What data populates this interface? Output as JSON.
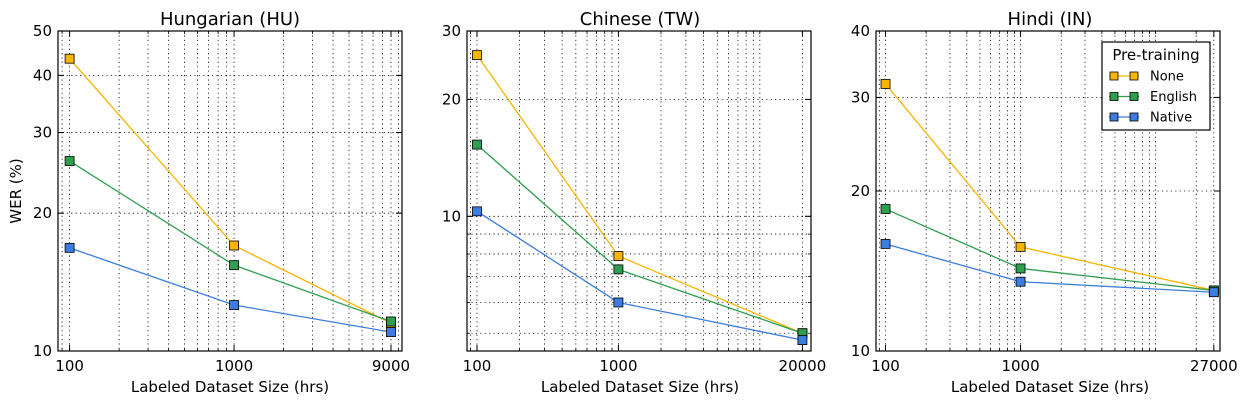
{
  "chart_data": [
    {
      "type": "line",
      "title": "Hungarian (HU)",
      "xlabel": "Labeled Dataset Size (hrs)",
      "ylabel": "WER (%)",
      "xscale": "log",
      "yscale": "log",
      "grid": true,
      "xlim": [
        85,
        10500
      ],
      "ylim": [
        10,
        50
      ],
      "xticks": [
        100,
        1000,
        9000
      ],
      "xtick_labels": [
        "100",
        "1000",
        "9000"
      ],
      "yticks": [
        10,
        20,
        30,
        40,
        50
      ],
      "ytick_labels": [
        "10",
        "20",
        "30",
        "40",
        "50"
      ],
      "x": [
        100,
        1000,
        9000
      ],
      "series": [
        {
          "name": "None",
          "color": "#f7b500",
          "values": [
            43.5,
            17.0,
            11.5
          ]
        },
        {
          "name": "English",
          "color": "#2e9e4f",
          "values": [
            26.0,
            15.4,
            11.6
          ]
        },
        {
          "name": "Native",
          "color": "#3b7de0",
          "values": [
            16.8,
            12.6,
            11.0
          ]
        }
      ]
    },
    {
      "type": "line",
      "title": "Chinese (TW)",
      "xlabel": "Labeled Dataset Size (hrs)",
      "ylabel": "",
      "xscale": "log",
      "yscale": "log",
      "grid": true,
      "xlim": [
        85,
        23000
      ],
      "ylim": [
        4.5,
        30
      ],
      "xticks": [
        100,
        1000,
        20000
      ],
      "xtick_labels": [
        "100",
        "1000",
        "20000"
      ],
      "yticks": [
        10,
        20,
        30
      ],
      "ytick_labels": [
        "10",
        "20",
        "30"
      ],
      "x": [
        100,
        1000,
        20000
      ],
      "series": [
        {
          "name": "None",
          "color": "#f7b500",
          "values": [
            26.0,
            7.9,
            5.0
          ]
        },
        {
          "name": "English",
          "color": "#2e9e4f",
          "values": [
            15.3,
            7.3,
            5.0
          ]
        },
        {
          "name": "Native",
          "color": "#3b7de0",
          "values": [
            10.3,
            6.0,
            4.8
          ]
        }
      ]
    },
    {
      "type": "line",
      "title": "Hindi (IN)",
      "xlabel": "Labeled Dataset Size (hrs)",
      "ylabel": "",
      "xscale": "log",
      "yscale": "log",
      "grid": true,
      "legend": {
        "title": "Pre-training",
        "location": "top-right"
      },
      "xlim": [
        85,
        30000
      ],
      "ylim": [
        10,
        40
      ],
      "xticks": [
        100,
        1000,
        27000
      ],
      "xtick_labels": [
        "100",
        "1000",
        "27000"
      ],
      "yticks": [
        10,
        20,
        30,
        40
      ],
      "ytick_labels": [
        "10",
        "20",
        "30",
        "40"
      ],
      "x": [
        100,
        1000,
        27000
      ],
      "series": [
        {
          "name": "None",
          "color": "#f7b500",
          "values": [
            31.8,
            15.7,
            13.0
          ]
        },
        {
          "name": "English",
          "color": "#2e9e4f",
          "values": [
            18.5,
            14.3,
            13.0
          ]
        },
        {
          "name": "Native",
          "color": "#3b7de0",
          "values": [
            15.9,
            13.5,
            12.9
          ]
        }
      ]
    }
  ]
}
